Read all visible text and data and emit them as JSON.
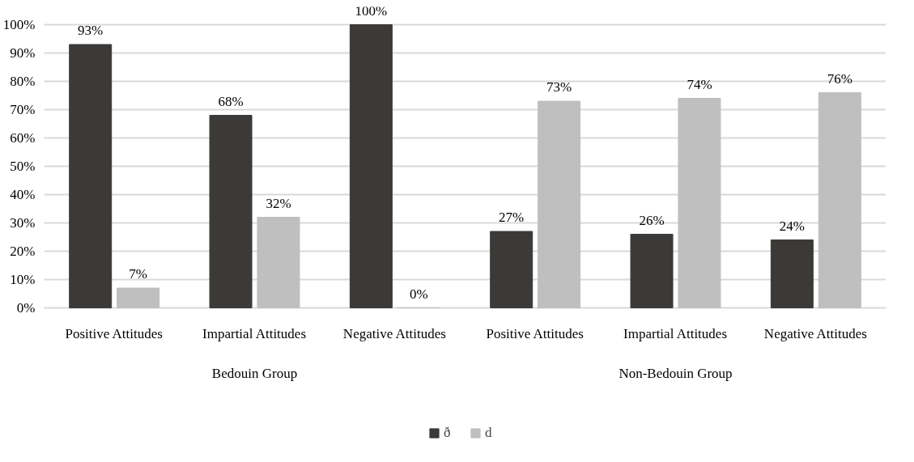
{
  "chart_data": {
    "type": "bar",
    "categories": [
      "Positive Attitudes",
      "Impartial Attitudes",
      "Negative Attitudes",
      "Positive Attitudes",
      "Impartial Attitudes",
      "Negative Attitudes"
    ],
    "series": [
      {
        "name": "ð",
        "color": "#3b3a38",
        "values": [
          93,
          68,
          100,
          27,
          26,
          24
        ],
        "value_labels": [
          "93%",
          "68%",
          "100%",
          "27%",
          "26%",
          "24%"
        ]
      },
      {
        "name": "d",
        "color": "#bfbfbf",
        "values": [
          7,
          32,
          0,
          73,
          74,
          76
        ],
        "value_labels": [
          "7%",
          "32%",
          "0%",
          "73%",
          "74%",
          "76%"
        ]
      }
    ],
    "annotations": [
      "Bedouin Group",
      "Non-Bedouin Group"
    ],
    "ylim": [
      0,
      100
    ],
    "yticks": [
      {
        "value": 0,
        "label": "0%"
      },
      {
        "value": 10,
        "label": "10%"
      },
      {
        "value": 20,
        "label": "20%"
      },
      {
        "value": 30,
        "label": "30%"
      },
      {
        "value": 40,
        "label": "40%"
      },
      {
        "value": 50,
        "label": "50%"
      },
      {
        "value": 60,
        "label": "60%"
      },
      {
        "value": 70,
        "label": "70%"
      },
      {
        "value": 80,
        "label": "80%"
      },
      {
        "value": 90,
        "label": "90%"
      },
      {
        "value": 100,
        "label": "100%"
      }
    ],
    "grid": "y",
    "legend": "bottom"
  }
}
